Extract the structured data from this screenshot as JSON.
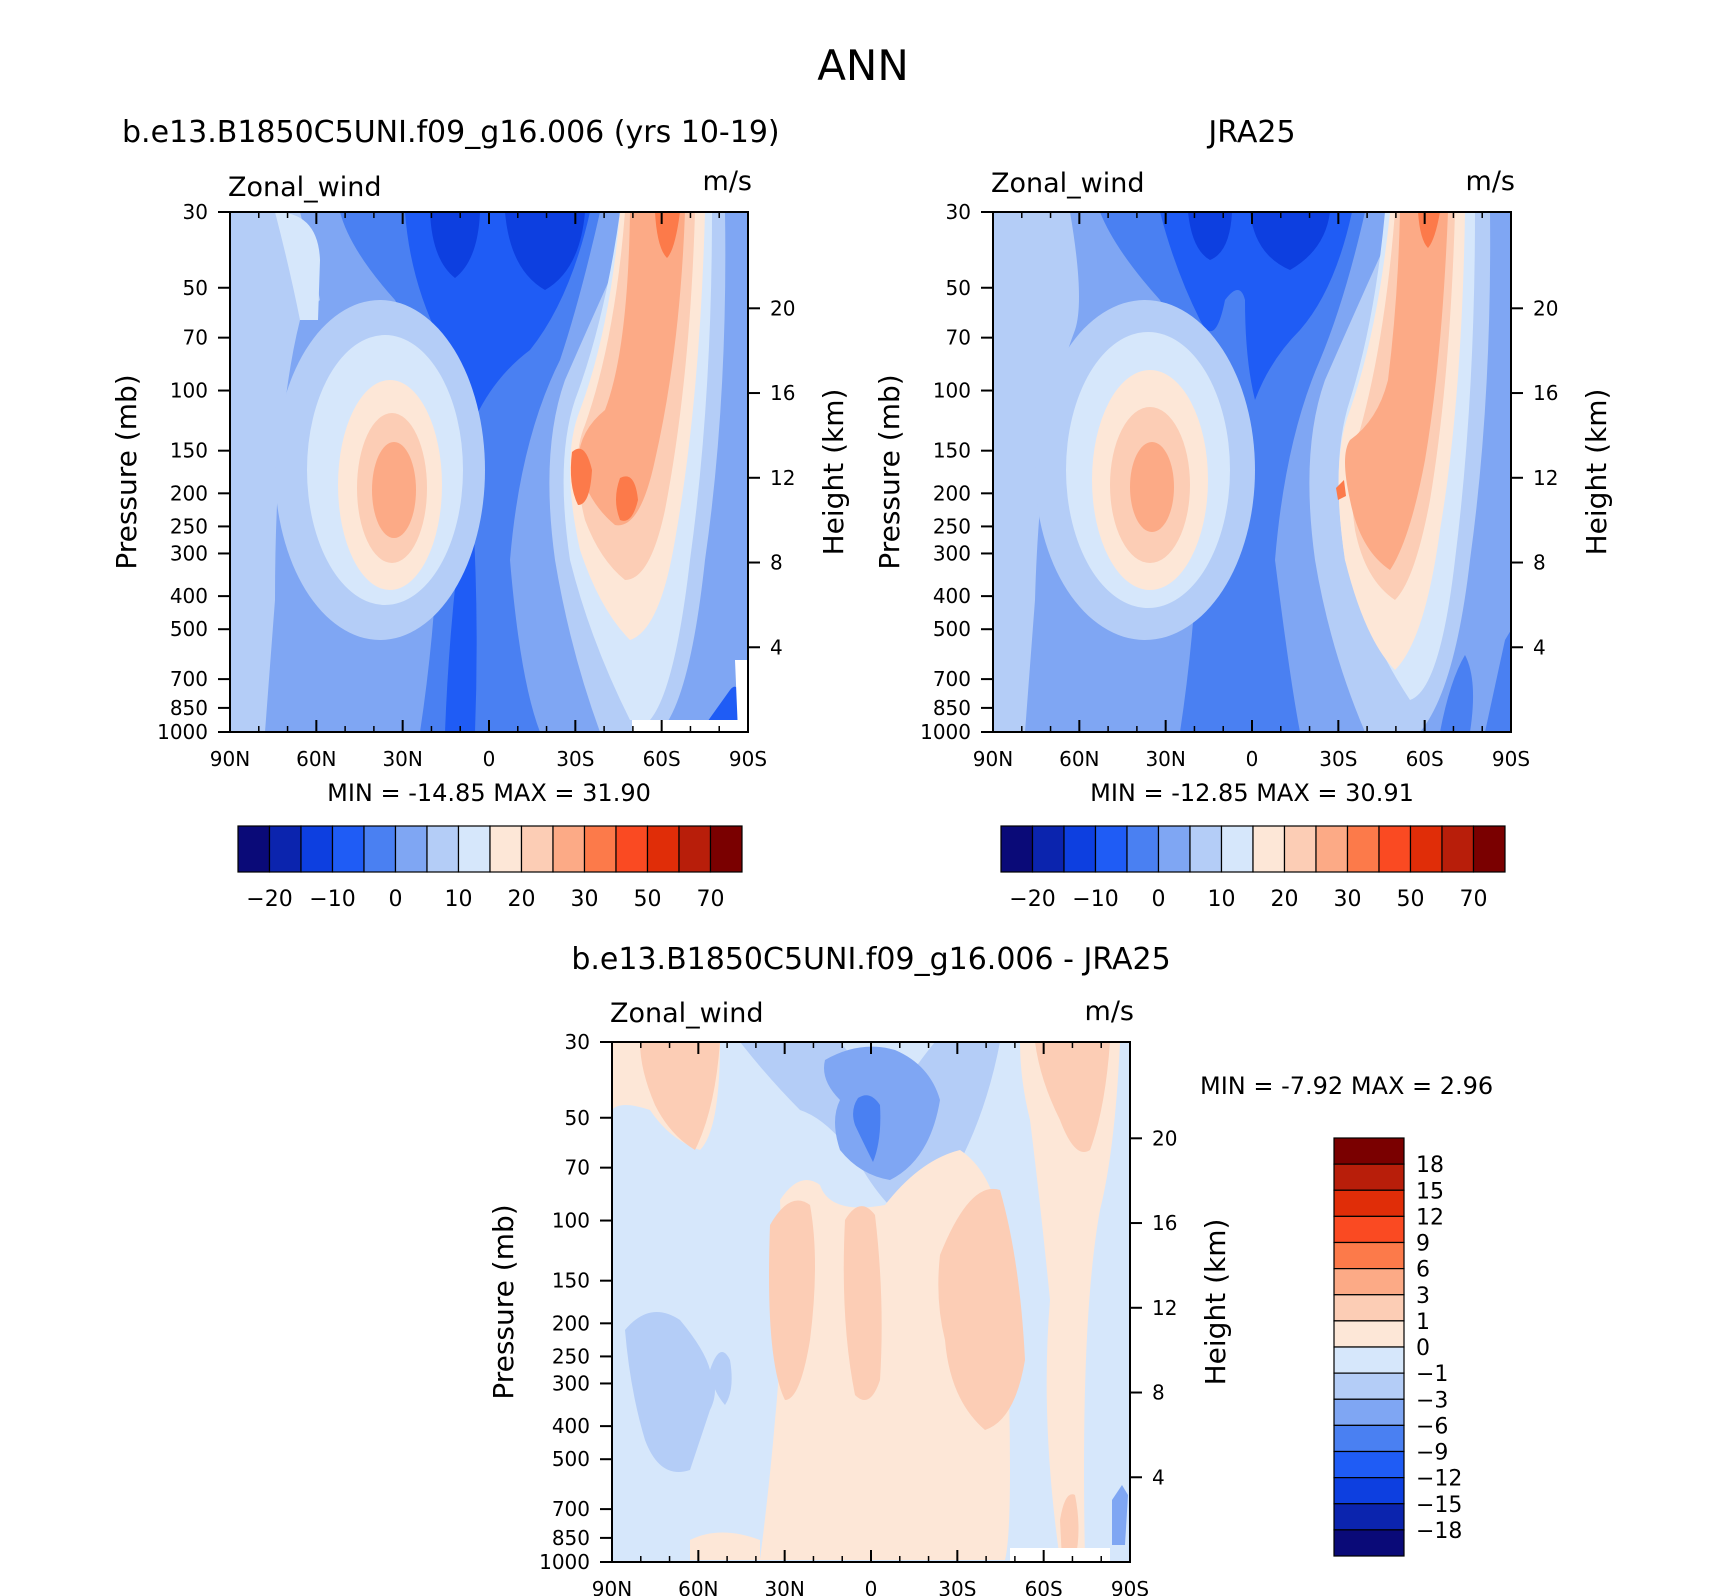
{
  "figure": {
    "title": "ANN"
  },
  "colors": {
    "full_palette": [
      "#0a0a78",
      "#0b24ae",
      "#0d3fe0",
      "#1f5cf5",
      "#4a80f2",
      "#7fa6f3",
      "#b4cdf7",
      "#d6e7fb",
      "#fde7d7",
      "#fccdb5",
      "#fcaa86",
      "#fc7a4a",
      "#fa4a22",
      "#e02d08",
      "#b81e0a",
      "#7a0000"
    ],
    "diff_palette": [
      "#0a0a78",
      "#0b24ae",
      "#0d3fe0",
      "#1f5cf5",
      "#4a80f2",
      "#7fa6f3",
      "#b4cdf7",
      "#d6e7fb",
      "#fde7d7",
      "#fccdb5",
      "#fcaa86",
      "#fc7a4a",
      "#fa4a22",
      "#e02d08",
      "#b81e0a",
      "#7a0000"
    ]
  },
  "chart_data": [
    {
      "type": "heatmap",
      "id": "model",
      "title": "b.e13.B1850C5UNI.f09_g16.006 (yrs 10-19)",
      "left_label": "Zonal_wind",
      "right_label": "m/s",
      "xlabel": "",
      "ylabel": "Pressure (mb)",
      "ylabel_right": "Height (km)",
      "x_ticks": [
        "90N",
        "60N",
        "30N",
        "0",
        "30S",
        "60S",
        "90S"
      ],
      "y_ticks": [
        30,
        50,
        70,
        100,
        150,
        200,
        250,
        300,
        400,
        500,
        700,
        850,
        1000
      ],
      "y2_ticks": [
        20,
        16,
        12,
        8,
        4
      ],
      "min_max": "MIN =  -14.85   MAX =   31.90",
      "colorbar_labels": [
        "-20",
        "-10",
        "0",
        "10",
        "20",
        "30",
        "50",
        "70"
      ]
    },
    {
      "type": "heatmap",
      "id": "obs",
      "title": "JRA25",
      "left_label": "Zonal_wind",
      "right_label": "m/s",
      "xlabel": "",
      "ylabel": "Pressure (mb)",
      "ylabel_right": "Height (km)",
      "x_ticks": [
        "90N",
        "60N",
        "30N",
        "0",
        "30S",
        "60S",
        "90S"
      ],
      "y_ticks": [
        30,
        50,
        70,
        100,
        150,
        200,
        250,
        300,
        400,
        500,
        700,
        850,
        1000
      ],
      "y2_ticks": [
        20,
        16,
        12,
        8,
        4
      ],
      "min_max": "MIN =  -12.85   MAX =   30.91",
      "colorbar_labels": [
        "-20",
        "-10",
        "0",
        "10",
        "20",
        "30",
        "50",
        "70"
      ]
    },
    {
      "type": "heatmap",
      "id": "diff",
      "title": "b.e13.B1850C5UNI.f09_g16.006 - JRA25",
      "left_label": "Zonal_wind",
      "right_label": "m/s",
      "xlabel": "",
      "ylabel": "Pressure (mb)",
      "ylabel_right": "Height (km)",
      "x_ticks": [
        "90N",
        "60N",
        "30N",
        "0",
        "30S",
        "60S",
        "90S"
      ],
      "y_ticks": [
        30,
        50,
        70,
        100,
        150,
        200,
        250,
        300,
        400,
        500,
        700,
        850,
        1000
      ],
      "y2_ticks": [
        20,
        16,
        12,
        8,
        4
      ],
      "min_max": "MIN =     -7.92   MAX =     2.96",
      "colorbar_labels": [
        "18",
        "15",
        "12",
        "9",
        "6",
        "3",
        "1",
        "0",
        "-1",
        "-3",
        "-6",
        "-9",
        "-12",
        "-15",
        "-18"
      ]
    }
  ]
}
